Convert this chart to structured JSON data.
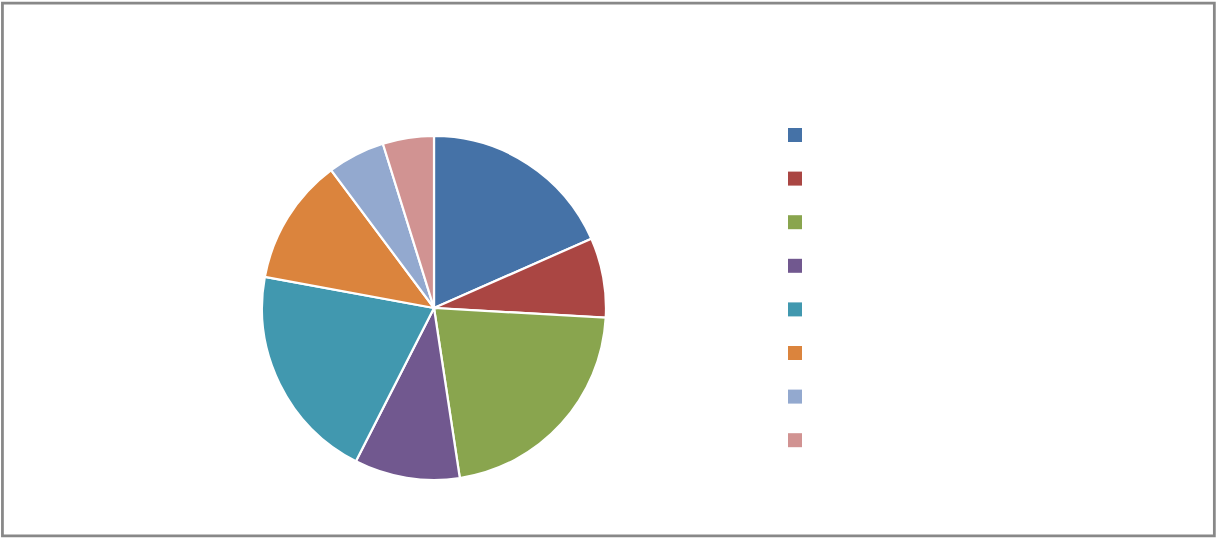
{
  "chart_data": {
    "type": "pie",
    "categories": [
      null,
      null,
      null,
      null,
      null,
      null,
      null,
      null
    ],
    "values": [
      18.4,
      7.5,
      21.7,
      9.9,
      20.4,
      11.9,
      5.4,
      4.8
    ],
    "colors": [
      "#4572a7",
      "#aa4643",
      "#89a54e",
      "#71588f",
      "#4198af",
      "#db843d",
      "#93a9cf",
      "#d19392"
    ]
  }
}
